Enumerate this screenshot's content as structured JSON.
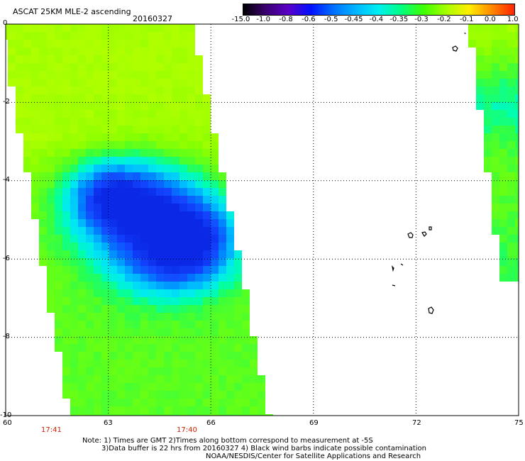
{
  "header": {
    "title": "ASCAT 25KM MLE-2 ascending",
    "date": "20160327"
  },
  "colorbar": {
    "labels": [
      "-15.0",
      "-1.0",
      "-0.8",
      "-0.6",
      "-0.5",
      "-0.45",
      "-0.4",
      "-0.35",
      "-0.3",
      "-0.2",
      "-0.1",
      "0.0",
      "1.0"
    ],
    "colors": [
      "#000000",
      "#3a0070",
      "#5a00c8",
      "#0010ff",
      "#0070ff",
      "#00b8ff",
      "#00f0f0",
      "#00ff80",
      "#40ff00",
      "#a8ff00",
      "#ffee00",
      "#ff8800",
      "#ff2200"
    ]
  },
  "map": {
    "x_ticks": [
      "60",
      "63",
      "66",
      "69",
      "72",
      "75"
    ],
    "y_ticks": [
      "0",
      "-2",
      "-4",
      "-6",
      "-8",
      "-10"
    ],
    "lon_range": [
      60,
      75
    ],
    "lat_range": [
      -10,
      0
    ],
    "swath_times": [
      "17:41",
      "17:40"
    ]
  },
  "notes": {
    "line1": "Note: 1) Times are GMT 2)Times along bottom correspond to measurement at -5S",
    "line2": "3)Data buffer is 22 hrs from 20160327 4) Black wind barbs indicate possible contamination",
    "line3": "NOAA/NESDIS/Center for Satellite Applications and Research"
  }
}
